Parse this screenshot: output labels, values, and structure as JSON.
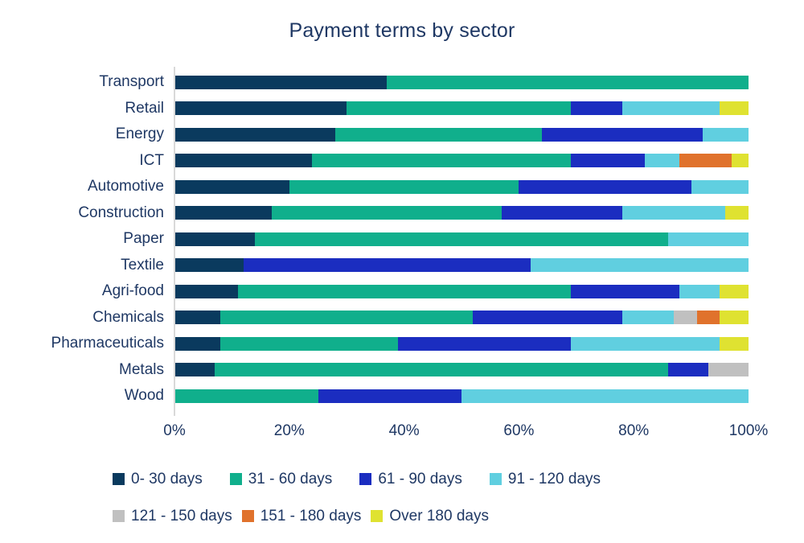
{
  "chart_data": {
    "type": "bar",
    "stacked": true,
    "orientation": "horizontal",
    "title": "Payment terms by sector",
    "categories": [
      "Transport",
      "Retail",
      "Energy",
      "ICT",
      "Automotive",
      "Construction",
      "Paper",
      "Textile",
      "Agri-food",
      "Chemicals",
      "Pharmaceuticals",
      "Metals",
      "Wood"
    ],
    "series": [
      {
        "name": "0- 30 days",
        "color": "#0a3a5e",
        "values": [
          37,
          30,
          28,
          24,
          20,
          17,
          14,
          12,
          11,
          8,
          8,
          7,
          0
        ]
      },
      {
        "name": "31 - 60 days",
        "color": "#10af8c",
        "values": [
          63,
          39,
          36,
          45,
          40,
          40,
          72,
          0,
          58,
          44,
          31,
          79,
          25
        ]
      },
      {
        "name": "61 - 90 days",
        "color": "#1b2dc0",
        "values": [
          0,
          9,
          28,
          13,
          30,
          21,
          0,
          50,
          19,
          26,
          30,
          7,
          25
        ]
      },
      {
        "name": "91 - 120 days",
        "color": "#60cfe0",
        "values": [
          0,
          17,
          8,
          6,
          10,
          18,
          14,
          38,
          7,
          9,
          26,
          0,
          50
        ]
      },
      {
        "name": "121 - 150 days",
        "color": "#c0c0c0",
        "values": [
          0,
          0,
          0,
          0,
          0,
          0,
          0,
          0,
          0,
          4,
          0,
          7,
          0
        ]
      },
      {
        "name": "151 - 180 days",
        "color": "#e0722c",
        "values": [
          0,
          0,
          0,
          9,
          0,
          0,
          0,
          0,
          0,
          4,
          0,
          0,
          0
        ]
      },
      {
        "name": "Over 180 days",
        "color": "#dfe231",
        "values": [
          0,
          5,
          0,
          3,
          0,
          4,
          0,
          0,
          5,
          5,
          5,
          0,
          0
        ]
      }
    ],
    "x_axis": {
      "min": 0,
      "max": 100,
      "ticks": [
        "0%",
        "20%",
        "40%",
        "60%",
        "80%",
        "100%"
      ]
    },
    "legend_position": "bottom",
    "legend_rows": [
      4,
      3
    ],
    "grid": false,
    "text_color": "#1f3864",
    "axis_line_color": "#d9d9d9"
  }
}
